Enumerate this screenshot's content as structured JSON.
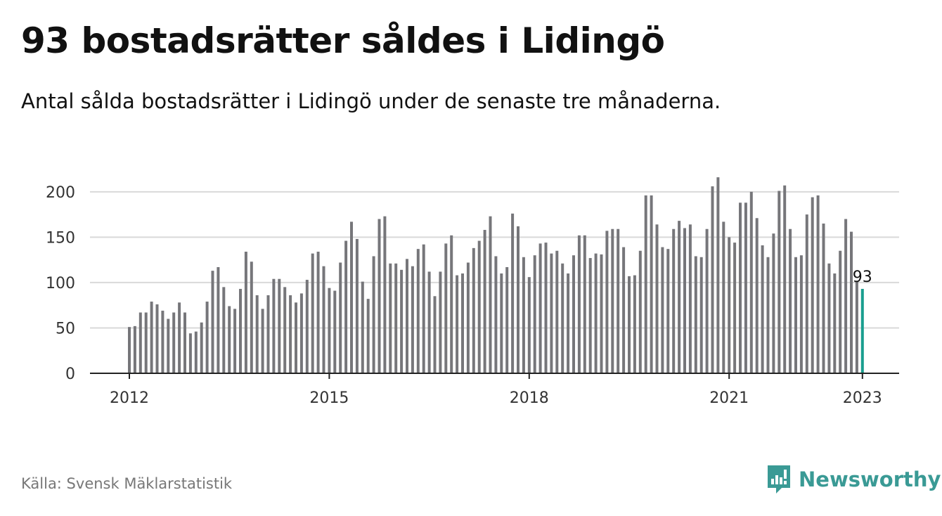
{
  "header": {
    "title": "93 bostadsrätter såldes i Lidingö",
    "subtitle": "Antal sålda bostadsrätter i Lidingö under de senaste tre månaderna."
  },
  "footer": {
    "source": "Källa: Svensk Mäklarstatistik",
    "brand": "Newsworthy",
    "brand_icon": "chart-bubble-icon"
  },
  "colors": {
    "bar": "#76767a",
    "highlight": "#1a9e8f",
    "grid": "#d9d9d9",
    "axis": "#222222",
    "brand": "#3a9a95"
  },
  "chart_data": {
    "type": "bar",
    "title": "93 bostadsrätter såldes i Lidingö",
    "xlabel": "",
    "ylabel": "",
    "ylim": [
      0,
      220
    ],
    "yticks": [
      0,
      50,
      100,
      150,
      200
    ],
    "xticks": [
      "2012",
      "2015",
      "2018",
      "2021",
      "2023"
    ],
    "grid": true,
    "start": "2012-01",
    "end": "2023-01",
    "highlight_label": "93",
    "values": [
      51,
      52,
      67,
      67,
      79,
      76,
      69,
      60,
      67,
      78,
      67,
      44,
      46,
      56,
      79,
      113,
      117,
      95,
      74,
      71,
      93,
      134,
      123,
      86,
      71,
      86,
      104,
      104,
      95,
      86,
      78,
      88,
      103,
      132,
      134,
      118,
      94,
      91,
      122,
      146,
      167,
      148,
      101,
      82,
      129,
      170,
      173,
      121,
      121,
      114,
      126,
      118,
      137,
      142,
      112,
      85,
      112,
      143,
      152,
      108,
      110,
      122,
      138,
      146,
      158,
      173,
      129,
      110,
      117,
      176,
      162,
      128,
      106,
      130,
      143,
      144,
      132,
      135,
      121,
      110,
      130,
      152,
      152,
      127,
      132,
      131,
      157,
      159,
      159,
      139,
      107,
      108,
      135,
      196,
      196,
      164,
      139,
      137,
      159,
      168,
      160,
      164,
      129,
      128,
      159,
      206,
      216,
      167,
      150,
      144,
      188,
      188,
      200,
      171,
      141,
      128,
      154,
      201,
      207,
      159,
      128,
      130,
      175,
      194,
      196,
      165,
      121,
      110,
      135,
      170,
      156,
      101,
      93
    ]
  }
}
